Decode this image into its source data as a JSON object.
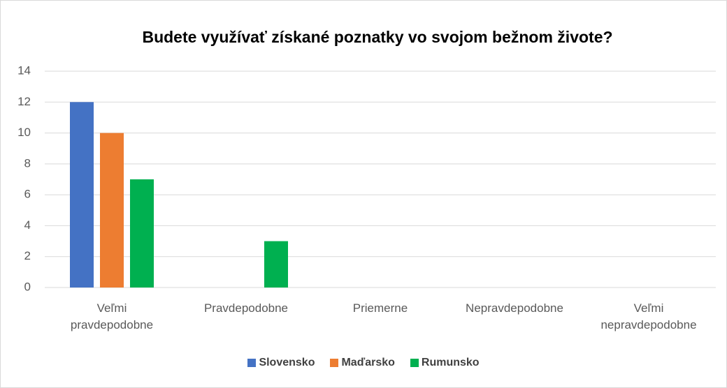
{
  "chart_data": {
    "type": "bar",
    "title": "Budete využívať získané poznatky vo svojom bežnom živote?",
    "categories": [
      "Veľmi pravdepodobne",
      "Pravdepodobne",
      "Priemerne",
      "Nepravdepodobne",
      "Veľmi nepravdepodobne"
    ],
    "series": [
      {
        "name": "Slovensko",
        "color": "#4472c4",
        "values": [
          12,
          0,
          0,
          0,
          0
        ]
      },
      {
        "name": "Maďarsko",
        "color": "#ed7d31",
        "values": [
          10,
          0,
          0,
          0,
          0
        ]
      },
      {
        "name": "Rumunsko",
        "color": "#00b050",
        "values": [
          7,
          3,
          0,
          0,
          0
        ]
      }
    ],
    "ylim": [
      0,
      14
    ],
    "yticks": [
      0,
      2,
      4,
      6,
      8,
      10,
      12,
      14
    ],
    "grid": true,
    "legend": "bottom"
  }
}
